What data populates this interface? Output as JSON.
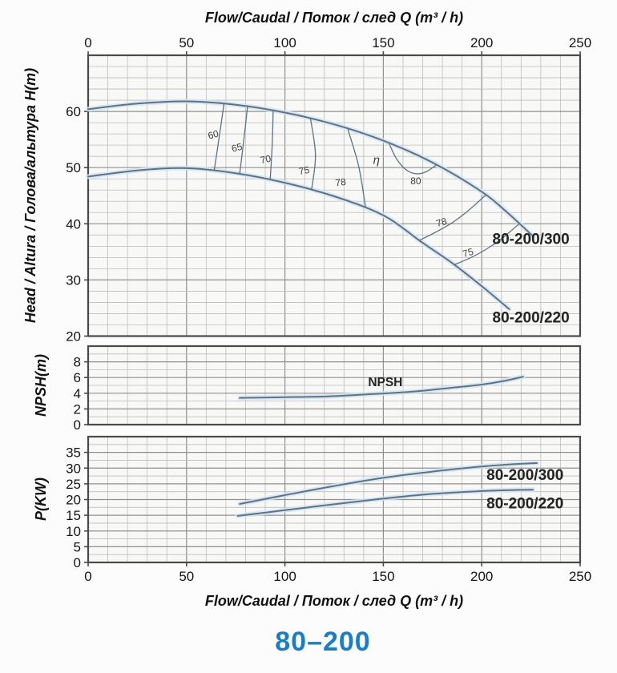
{
  "page_title": "80–200",
  "x_axis_title": "Flow/Caudal / Поток / след  Q (m³ / h)",
  "colors": {
    "title_blue": "#1b7ec5",
    "curve": "#5e7286",
    "curve_halo": "#d3e5f2",
    "grid_minor": "#bdbdbd",
    "grid_major": "#909090",
    "plot_border": "#4a4a4a",
    "plot_bg": "#f8f8f7",
    "tick_text": "#151515",
    "eff_text": "#3f3f3f",
    "series_label_text": "#232323"
  },
  "chart_data": [
    {
      "type": "line",
      "id": "head",
      "title": "Pump head curves 80-200",
      "xlabel": "Flow/Caudal / Поток / след  Q (m³ / h)",
      "ylabel": "Head / Altura / Голова/альтура H(m)",
      "xlim": [
        0,
        250
      ],
      "ylim": [
        20,
        70
      ],
      "x_ticks": [
        0,
        50,
        100,
        150,
        200,
        250
      ],
      "y_ticks": [
        20,
        30,
        40,
        50,
        60
      ],
      "x_minor_step": 10,
      "y_minor_step": 2,
      "grid": true,
      "series": [
        {
          "name": "80-200/300",
          "points": [
            [
              0,
              60.4
            ],
            [
              25,
              61.4
            ],
            [
              50,
              61.8
            ],
            [
              75,
              61.2
            ],
            [
              100,
              59.8
            ],
            [
              125,
              57.7
            ],
            [
              150,
              54.8
            ],
            [
              175,
              50.9
            ],
            [
              200,
              45.7
            ],
            [
              213,
              42.0
            ],
            [
              226,
              37.8
            ]
          ]
        },
        {
          "name": "80-200/220",
          "points": [
            [
              0,
              48.4
            ],
            [
              25,
              49.5
            ],
            [
              50,
              49.9
            ],
            [
              75,
              49.0
            ],
            [
              100,
              47.3
            ],
            [
              125,
              44.9
            ],
            [
              150,
              41.5
            ],
            [
              170,
              36.6
            ],
            [
              185,
              33.0
            ],
            [
              200,
              28.9
            ],
            [
              214,
              24.8
            ]
          ]
        }
      ],
      "efficiency_contours": [
        {
          "value": 60,
          "points": [
            [
              69,
              61.3
            ],
            [
              66.5,
              55.2
            ],
            [
              64,
              49.4
            ]
          ]
        },
        {
          "value": 65,
          "points": [
            [
              81,
              60.9
            ],
            [
              79,
              54.6
            ],
            [
              77,
              48.9
            ]
          ]
        },
        {
          "value": 70,
          "points": [
            [
              94,
              60.1
            ],
            [
              93.5,
              53.8
            ],
            [
              92.5,
              47.8
            ]
          ]
        },
        {
          "value": 75,
          "points": [
            [
              113,
              58.7
            ],
            [
              115.5,
              52.2
            ],
            [
              113.5,
              46.0
            ]
          ]
        },
        {
          "value": 78,
          "points": [
            [
              132,
              56.8
            ],
            [
              137.5,
              50.2
            ],
            [
              141,
              42.8
            ]
          ]
        },
        {
          "value": 80,
          "points": [
            [
              153,
              54.2
            ],
            [
              157,
              51.4
            ],
            [
              162,
              49.5
            ],
            [
              167,
              48.9
            ],
            [
              172,
              49.3
            ],
            [
              177,
              50.5
            ]
          ]
        },
        {
          "value": 78,
          "points": [
            [
              202,
              45.1
            ],
            [
              193,
              42.3
            ],
            [
              185,
              40.2
            ],
            [
              176,
              38.4
            ],
            [
              168,
              37.0
            ]
          ]
        },
        {
          "value": 75,
          "points": [
            [
              219,
              40.0
            ],
            [
              210,
              37.3
            ],
            [
              202,
              35.4
            ],
            [
              194,
              33.9
            ],
            [
              186,
              32.7
            ]
          ]
        }
      ],
      "annotations": [
        {
          "text": "60",
          "x": 64,
          "y": 55.3,
          "kind": "eff",
          "rot": -15
        },
        {
          "text": "65",
          "x": 76,
          "y": 53.0,
          "kind": "eff",
          "rot": -14
        },
        {
          "text": "70",
          "x": 90.5,
          "y": 50.9,
          "kind": "eff",
          "rot": -12
        },
        {
          "text": "75",
          "x": 110,
          "y": 48.9,
          "kind": "eff",
          "rot": -10
        },
        {
          "text": "78",
          "x": 128.5,
          "y": 46.8,
          "kind": "eff",
          "rot": -8
        },
        {
          "text": "η",
          "x": 146.5,
          "y": 50.7,
          "kind": "eta",
          "rot": 0
        },
        {
          "text": "80",
          "x": 166.5,
          "y": 47.0,
          "kind": "eff",
          "rot": 0
        },
        {
          "text": "78",
          "x": 180,
          "y": 39.7,
          "kind": "eff",
          "rot": -16
        },
        {
          "text": "75",
          "x": 193.5,
          "y": 34.3,
          "kind": "eff",
          "rot": -16
        },
        {
          "text": "80-200/300",
          "x": 225,
          "y": 36.4,
          "kind": "series"
        },
        {
          "text": "80-200/220",
          "x": 225,
          "y": 22.4,
          "kind": "series"
        }
      ]
    },
    {
      "type": "line",
      "id": "npsh",
      "title": "NPSH curve",
      "ylabel": "NPSH(m)",
      "xlim": [
        0,
        250
      ],
      "ylim": [
        0,
        10
      ],
      "y_ticks": [
        0,
        2,
        4,
        6,
        8
      ],
      "x_minor_step": 10,
      "y_minor_step": 1,
      "grid": true,
      "series": [
        {
          "name": "NPSH",
          "points": [
            [
              77,
              3.4
            ],
            [
              100,
              3.5
            ],
            [
              122,
              3.6
            ],
            [
              145,
              3.9
            ],
            [
              165,
              4.2
            ],
            [
              185,
              4.7
            ],
            [
              200,
              5.1
            ],
            [
              212,
              5.6
            ],
            [
              221,
              6.1
            ]
          ]
        }
      ],
      "annotations": [
        {
          "text": "NPSH",
          "x": 151,
          "y": 4.9,
          "kind": "curve"
        }
      ]
    },
    {
      "type": "line",
      "id": "power",
      "title": "Power curves",
      "ylabel": "P(KW)",
      "xlim": [
        0,
        250
      ],
      "ylim": [
        0,
        40
      ],
      "y_ticks": [
        0,
        5,
        10,
        15,
        20,
        25,
        30,
        35
      ],
      "x_minor_step": 10,
      "y_minor_step": 2.5,
      "grid": true,
      "series": [
        {
          "name": "80-200/300",
          "points": [
            [
              77,
              18.6
            ],
            [
              100,
              21.4
            ],
            [
              125,
              24.3
            ],
            [
              150,
              26.9
            ],
            [
              175,
              28.9
            ],
            [
              200,
              30.5
            ],
            [
              215,
              31.2
            ],
            [
              228,
              31.6
            ]
          ]
        },
        {
          "name": "80-200/220",
          "points": [
            [
              76,
              14.8
            ],
            [
              100,
              16.6
            ],
            [
              125,
              18.5
            ],
            [
              150,
              20.3
            ],
            [
              175,
              21.8
            ],
            [
              200,
              22.7
            ],
            [
              214,
              23.0
            ],
            [
              226,
              23.1
            ]
          ]
        }
      ],
      "annotations": [
        {
          "text": "80-200/300",
          "x": 222,
          "y": 26.3,
          "kind": "series"
        },
        {
          "text": "80-200/220",
          "x": 222,
          "y": 17.2,
          "kind": "series"
        }
      ]
    }
  ]
}
